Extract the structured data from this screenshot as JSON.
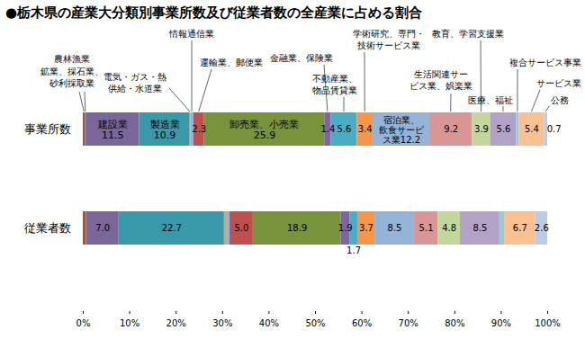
{
  "chart_data": {
    "type": "bar",
    "title": "●栃木県の産業大分類別事業所数及び従業者数の全産業に占める割合",
    "orientation": "horizontal",
    "stacked": true,
    "data_labels": true,
    "grid": false,
    "categories": [
      "事業所数",
      "従業者数"
    ],
    "xlim": [
      0,
      100
    ],
    "xticks": [
      {
        "value": 0,
        "label": "0%"
      },
      {
        "value": 10,
        "label": "10%"
      },
      {
        "value": 20,
        "label": "20%"
      },
      {
        "value": 30,
        "label": "30%"
      },
      {
        "value": 40,
        "label": "40%"
      },
      {
        "value": 50,
        "label": "50%"
      },
      {
        "value": 60,
        "label": "60%"
      },
      {
        "value": 70,
        "label": "70%"
      },
      {
        "value": 80,
        "label": "80%"
      },
      {
        "value": 90,
        "label": "90%"
      },
      {
        "value": 100,
        "label": "100%"
      }
    ],
    "series": [
      {
        "name": "農林漁業",
        "color": "#9c5a3c",
        "values": [
          0.5,
          0.6
        ],
        "value_labels": [
          null,
          null
        ]
      },
      {
        "name": "鉱業、採石業、砂利採取業",
        "color": "#4f81bd",
        "values": [
          0.1,
          0.1
        ],
        "value_labels": [
          null,
          null
        ]
      },
      {
        "name": "建設業",
        "color": "#7a6699",
        "values": [
          11.5,
          7.0
        ],
        "value_labels": [
          "11.5",
          "7.0"
        ]
      },
      {
        "name": "製造業",
        "color": "#3a98ab",
        "values": [
          10.9,
          22.7
        ],
        "value_labels": [
          "10.9",
          "22.7"
        ]
      },
      {
        "name": "電気・ガス・熱供給・水道業",
        "color": "#f79646",
        "values": [
          0.1,
          0.4
        ],
        "value_labels": [
          null,
          null
        ]
      },
      {
        "name": "情報通信業",
        "color": "#8eb4e3",
        "values": [
          0.7,
          0.8
        ],
        "value_labels": [
          null,
          null
        ]
      },
      {
        "name": "運輸業、郵便業",
        "color": "#c0504d",
        "values": [
          2.3,
          5.0
        ],
        "value_labels": [
          "2.3",
          "5.0"
        ]
      },
      {
        "name": "卸売業、小売業",
        "color": "#77933c",
        "values": [
          25.9,
          18.9
        ],
        "value_labels": [
          "25.9",
          "18.9"
        ]
      },
      {
        "name": "金融業、保険業",
        "color": "#8064a2",
        "values": [
          1.4,
          1.9
        ],
        "value_labels": [
          "1.4",
          "1.9"
        ]
      },
      {
        "name": "不動産業、物品賃貸業",
        "color": "#4bacc6",
        "values": [
          5.6,
          1.7
        ],
        "value_labels": [
          "5.6",
          "1.7"
        ]
      },
      {
        "name": "学術研究、専門・技術サービス業",
        "color": "#f79646",
        "values": [
          3.4,
          3.7
        ],
        "value_labels": [
          "3.4",
          "3.7"
        ]
      },
      {
        "name": "宿泊業、飲食サービス業",
        "color": "#95b3d7",
        "values": [
          12.2,
          8.5
        ],
        "value_labels": [
          "12.2",
          "8.5"
        ]
      },
      {
        "name": "生活関連サービス業、娯楽業",
        "color": "#d99694",
        "values": [
          9.2,
          5.1
        ],
        "value_labels": [
          "9.2",
          "5.1"
        ]
      },
      {
        "name": "教育、学習支援業",
        "color": "#c3d69b",
        "values": [
          3.9,
          4.8
        ],
        "value_labels": [
          "3.9",
          "4.8"
        ]
      },
      {
        "name": "医療、福祉",
        "color": "#b3a2c7",
        "values": [
          5.6,
          8.5
        ],
        "value_labels": [
          "5.6",
          "8.5"
        ]
      },
      {
        "name": "複合サービス事業",
        "color": "#93cddd",
        "values": [
          0.6,
          1.0
        ],
        "value_labels": [
          null,
          null
        ]
      },
      {
        "name": "サービス業",
        "color": "#fac090",
        "values": [
          5.4,
          6.7
        ],
        "value_labels": [
          "5.4",
          "6.7"
        ]
      },
      {
        "name": "公務",
        "color": "#b9cde5",
        "values": [
          0.7,
          2.6
        ],
        "value_labels": [
          "0.7",
          "2.6"
        ]
      }
    ]
  }
}
